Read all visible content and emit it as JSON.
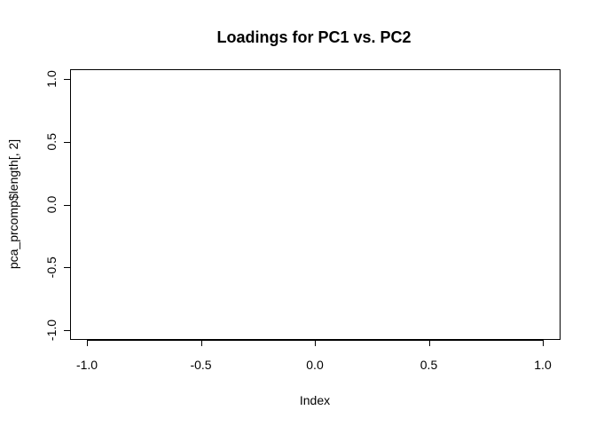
{
  "chart_data": {
    "type": "scatter",
    "title": "Loadings for PC1 vs. PC2",
    "xlabel": "Index",
    "ylabel": "pca_prcomp$length[, 2]",
    "xlim": [
      -1.0,
      1.0
    ],
    "ylim": [
      -1.0,
      1.0
    ],
    "x_ticks": [
      -1.0,
      -0.5,
      0.0,
      0.5,
      1.0
    ],
    "y_ticks": [
      -1.0,
      -0.5,
      0.0,
      0.5,
      1.0
    ],
    "x_tick_labels": [
      "-1.0",
      "-0.5",
      "0.0",
      "0.5",
      "1.0"
    ],
    "y_tick_labels": [
      "-1.0",
      "-0.5",
      "0.0",
      "0.5",
      "1.0"
    ],
    "points": [],
    "grid": false,
    "legend": false
  }
}
